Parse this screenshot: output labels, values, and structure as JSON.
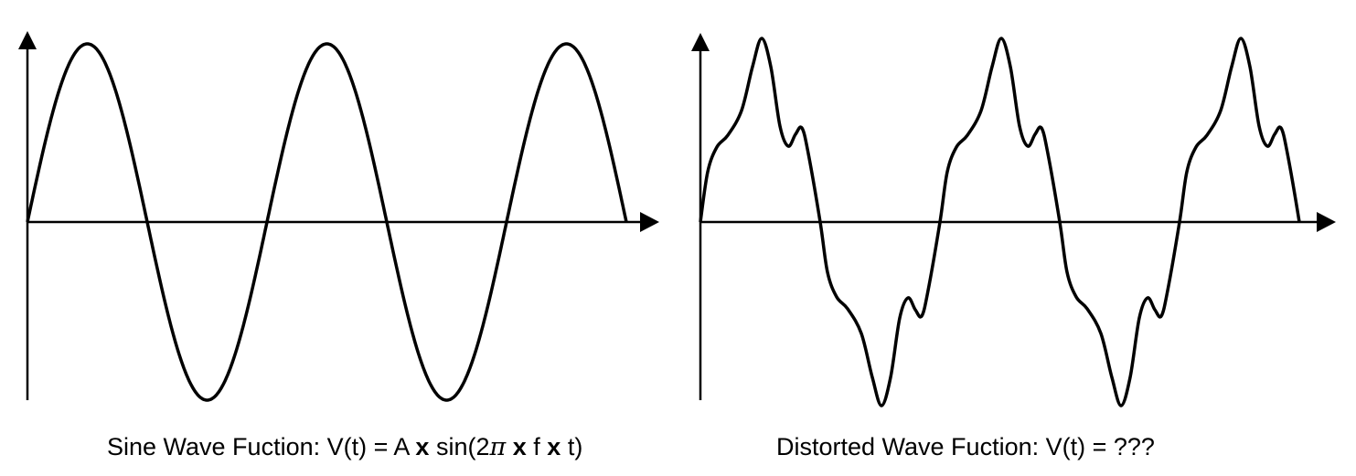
{
  "left_panel": {
    "caption": {
      "prefix": "Sine Wave Fuction: V(t) = A ",
      "times1": "x",
      "mid1": " sin(2",
      "pi": "π",
      "times2": "x",
      "mid2": " f ",
      "times3": "x",
      "suffix": " t)"
    },
    "waveform": "sine",
    "cycles": 2.5
  },
  "right_panel": {
    "caption": "Distorted Wave Fuction: V(t) = ???",
    "waveform": "distorted sine",
    "cycles": 2.5
  },
  "colors": {
    "line": "#000000",
    "background": "#ffffff"
  }
}
